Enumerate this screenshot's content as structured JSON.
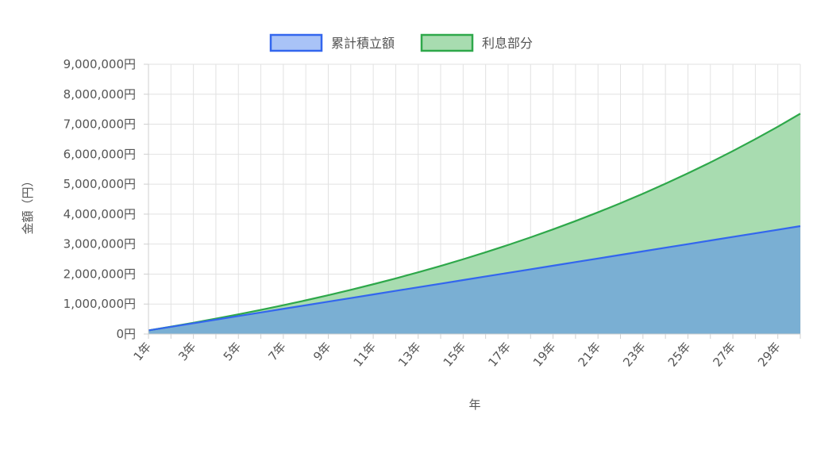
{
  "chart_data": {
    "type": "area",
    "stacked": true,
    "title": "",
    "xlabel": "年",
    "ylabel": "金額（円）",
    "ylim": [
      0,
      9000000
    ],
    "y_tick_values": [
      0,
      1000000,
      2000000,
      3000000,
      4000000,
      5000000,
      6000000,
      7000000,
      8000000,
      9000000
    ],
    "y_tick_labels": [
      "0円",
      "1,000,000円",
      "2,000,000円",
      "3,000,000円",
      "4,000,000円",
      "5,000,000円",
      "6,000,000円",
      "7,000,000円",
      "8,000,000円",
      "9,000,000円"
    ],
    "categories": [
      "1年",
      "2年",
      "3年",
      "4年",
      "5年",
      "6年",
      "7年",
      "8年",
      "9年",
      "10年",
      "11年",
      "12年",
      "13年",
      "14年",
      "15年",
      "16年",
      "17年",
      "18年",
      "19年",
      "20年",
      "21年",
      "22年",
      "23年",
      "24年",
      "25年",
      "26年",
      "27年",
      "28年",
      "29年",
      "30年"
    ],
    "x_tick_labels": [
      "1年",
      "3年",
      "5年",
      "7年",
      "9年",
      "11年",
      "13年",
      "15年",
      "17年",
      "19年",
      "21年",
      "23年",
      "25年",
      "27年",
      "29年"
    ],
    "grid": true,
    "legend_position": "top",
    "series": [
      {
        "name": "累計積立額",
        "color": "#3366ee",
        "fill": "#7aafd3",
        "values": [
          120000,
          240000,
          360000,
          480000,
          600000,
          720000,
          840000,
          960000,
          1080000,
          1200000,
          1320000,
          1440000,
          1560000,
          1680000,
          1800000,
          1920000,
          2040000,
          2160000,
          2280000,
          2400000,
          2520000,
          2640000,
          2760000,
          2880000,
          3000000,
          3120000,
          3240000,
          3360000,
          3480000,
          3600000
        ]
      },
      {
        "name": "利息部分",
        "color": "#2ea84a",
        "fill": "#a8dcb0",
        "totals": [
          120000,
          245000,
          376000,
          513000,
          656000,
          806000,
          962000,
          1125000,
          1296000,
          1475000,
          1661000,
          1856000,
          2060000,
          2273000,
          2495000,
          2728000,
          2971000,
          3226000,
          3492000,
          3770000,
          4061000,
          4365000,
          4683000,
          5015000,
          5362000,
          5726000,
          6106000,
          6503000,
          6918000,
          7352000
        ]
      }
    ]
  }
}
